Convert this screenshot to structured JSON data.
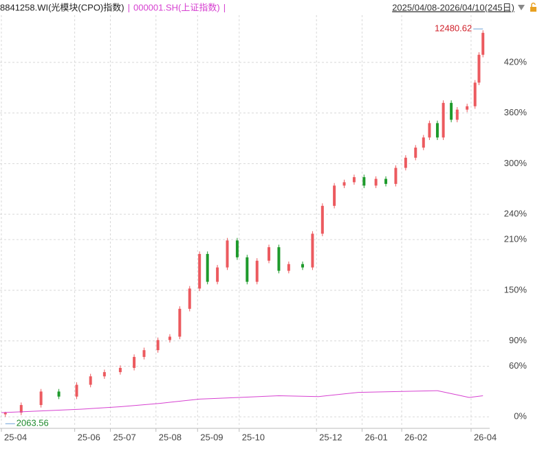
{
  "chart_data": {
    "type": "candlestick",
    "legend_separator": "|",
    "date_range": "2025/04/08-2026/04/10(245日)",
    "max_label": 12480.62,
    "min_label": 2063.56,
    "xlim": [
      0,
      245
    ],
    "ylim": [
      -12,
      476
    ],
    "grid": true,
    "xticks": [
      {
        "value": 0,
        "label": "25-04"
      },
      {
        "value": 37,
        "label": "25-06"
      },
      {
        "value": 55,
        "label": "25-07"
      },
      {
        "value": 78,
        "label": "25-08"
      },
      {
        "value": 99,
        "label": "25-09"
      },
      {
        "value": 120,
        "label": "25-10"
      },
      {
        "value": 159,
        "label": "25-12"
      },
      {
        "value": 182,
        "label": "26-01"
      },
      {
        "value": 202,
        "label": "26-02"
      },
      {
        "value": 237,
        "label": "26-04"
      }
    ],
    "yticks": [
      {
        "value": 0,
        "label": "0%"
      },
      {
        "value": 60,
        "label": "60%"
      },
      {
        "value": 90,
        "label": "90%"
      },
      {
        "value": 150,
        "label": "150%"
      },
      {
        "value": 210,
        "label": "210%"
      },
      {
        "value": 240,
        "label": "240%"
      },
      {
        "value": 300,
        "label": "300%"
      },
      {
        "value": 360,
        "label": "360%"
      },
      {
        "value": 420,
        "label": "420%"
      }
    ],
    "series": [
      {
        "name": "8841258.WI(光模块(CPO)指数)",
        "type": "candlestick",
        "up_color": "#ec5a5f",
        "down_color": "#1d9a2b",
        "x": [
          2,
          10,
          20,
          29,
          38,
          45,
          52,
          60,
          67,
          72,
          79,
          85,
          90,
          95,
          100,
          104,
          109,
          114,
          119,
          124,
          129,
          135,
          140,
          145,
          152,
          157,
          162,
          168,
          173,
          178,
          183,
          189,
          194,
          199,
          204,
          209,
          213,
          216,
          220,
          223,
          227,
          230,
          235,
          239,
          241,
          243
        ],
        "open": [
          3,
          5,
          14,
          30,
          24,
          38,
          48,
          53,
          58,
          71,
          79,
          91,
          95,
          128,
          152,
          193,
          160,
          177,
          209,
          189,
          160,
          185,
          201,
          173,
          181,
          177,
          217,
          250,
          274,
          278,
          284,
          274,
          282,
          276,
          295,
          307,
          319,
          331,
          348,
          331,
          372,
          352,
          364,
          368,
          396,
          429
        ],
        "close": [
          5,
          14,
          30,
          24,
          38,
          48,
          53,
          58,
          71,
          79,
          91,
          95,
          128,
          152,
          193,
          160,
          177,
          209,
          189,
          160,
          185,
          201,
          173,
          181,
          177,
          217,
          250,
          274,
          278,
          284,
          274,
          282,
          276,
          295,
          307,
          319,
          331,
          348,
          331,
          372,
          352,
          364,
          368,
          396,
          429,
          455
        ],
        "high": [
          6,
          17,
          33,
          33,
          41,
          51,
          56,
          61,
          74,
          82,
          94,
          98,
          131,
          155,
          196,
          196,
          180,
          212,
          212,
          192,
          188,
          204,
          204,
          184,
          184,
          220,
          253,
          277,
          281,
          287,
          287,
          285,
          285,
          298,
          310,
          322,
          334,
          351,
          351,
          375,
          375,
          367,
          371,
          399,
          432,
          458
        ],
        "low": [
          0,
          2,
          11,
          21,
          21,
          35,
          45,
          50,
          55,
          68,
          76,
          88,
          92,
          125,
          149,
          157,
          157,
          174,
          186,
          157,
          157,
          182,
          170,
          170,
          174,
          174,
          214,
          247,
          271,
          275,
          271,
          271,
          273,
          273,
          292,
          304,
          316,
          328,
          328,
          328,
          349,
          349,
          361,
          365,
          393,
          426
        ]
      },
      {
        "name": "000001.SH(上证指数)",
        "type": "line",
        "color": "#d63fd0",
        "x": [
          0,
          20,
          40,
          60,
          80,
          100,
          120,
          140,
          160,
          180,
          200,
          220,
          230,
          236,
          243
        ],
        "values": [
          5,
          7,
          9,
          12,
          16,
          21,
          23,
          25,
          24,
          29,
          30,
          31,
          26,
          23,
          25
        ]
      }
    ]
  }
}
